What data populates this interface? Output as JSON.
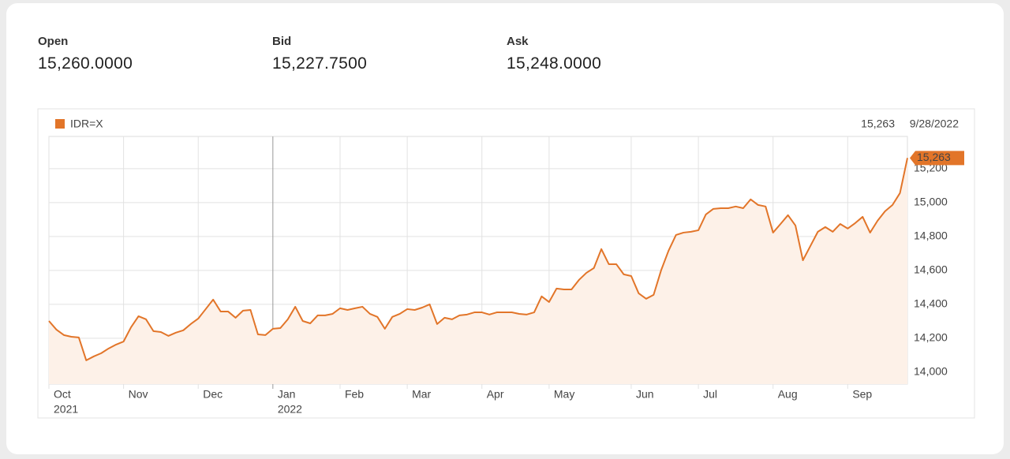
{
  "quote": {
    "items": [
      {
        "label": "Open",
        "value": "15,260.0000"
      },
      {
        "label": "Bid",
        "value": "15,227.7500"
      },
      {
        "label": "Ask",
        "value": "15,248.0000"
      }
    ]
  },
  "chart_data": {
    "type": "line",
    "series": [
      {
        "name": "IDR=X",
        "color": "#e27529",
        "values": [
          14302,
          14251,
          14219,
          14209,
          14205,
          14070,
          14093,
          14112,
          14140,
          14163,
          14181,
          14265,
          14330,
          14312,
          14242,
          14237,
          14214,
          14233,
          14247,
          14284,
          14316,
          14372,
          14428,
          14358,
          14358,
          14321,
          14363,
          14367,
          14223,
          14219,
          14256,
          14260,
          14312,
          14386,
          14302,
          14288,
          14335,
          14335,
          14344,
          14377,
          14367,
          14377,
          14386,
          14344,
          14326,
          14256,
          14326,
          14344,
          14372,
          14367,
          14381,
          14400,
          14284,
          14321,
          14312,
          14335,
          14340,
          14353,
          14353,
          14340,
          14353,
          14353,
          14353,
          14344,
          14340,
          14353,
          14447,
          14414,
          14493,
          14488,
          14488,
          14544,
          14586,
          14614,
          14726,
          14637,
          14637,
          14577,
          14567,
          14465,
          14433,
          14456,
          14600,
          14716,
          14809,
          14823,
          14828,
          14837,
          14930,
          14963,
          14967,
          14967,
          14977,
          14967,
          15019,
          14986,
          14977,
          14823,
          14874,
          14926,
          14865,
          14660,
          14744,
          14828,
          14856,
          14828,
          14874,
          14847,
          14879,
          14916,
          14823,
          14893,
          14949,
          14986,
          15056,
          15263
        ]
      }
    ],
    "last_value": {
      "value": 15263,
      "label": "15,263"
    },
    "last_date": "9/28/2022",
    "xlim": [
      0,
      115
    ],
    "xticks": [
      {
        "value": 0,
        "label": "Oct",
        "year": "2021"
      },
      {
        "value": 10,
        "label": "Nov"
      },
      {
        "value": 20,
        "label": "Dec"
      },
      {
        "value": 30,
        "label": "Jan",
        "year": "2022"
      },
      {
        "value": 39,
        "label": "Feb"
      },
      {
        "value": 48,
        "label": "Mar"
      },
      {
        "value": 58,
        "label": "Apr"
      },
      {
        "value": 67,
        "label": "May"
      },
      {
        "value": 78,
        "label": "Jun"
      },
      {
        "value": 87,
        "label": "Jul"
      },
      {
        "value": 97,
        "label": "Aug"
      },
      {
        "value": 107,
        "label": "Sep"
      }
    ],
    "ylim": [
      13930,
      15390
    ],
    "yticks": [
      {
        "value": 14000,
        "label": "14,000"
      },
      {
        "value": 14200,
        "label": "14,200"
      },
      {
        "value": 14400,
        "label": "14,400"
      },
      {
        "value": 14600,
        "label": "14,600"
      },
      {
        "value": 14800,
        "label": "14,800"
      },
      {
        "value": 15000,
        "label": "15,000"
      },
      {
        "value": 15200,
        "label": "15,200"
      }
    ],
    "grid": true,
    "fill": "#fdf1e8"
  }
}
